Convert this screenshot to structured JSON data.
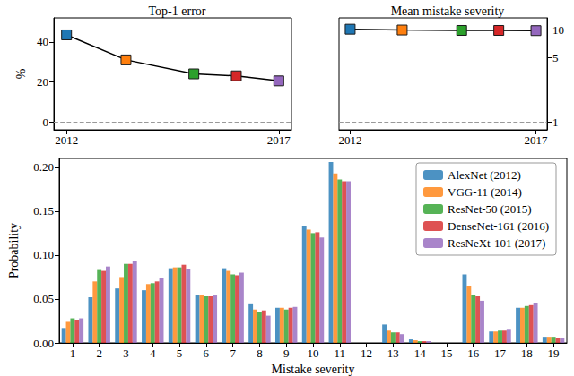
{
  "chart_data": [
    {
      "type": "line",
      "title": "Top-1 error",
      "ylabel": "%",
      "x": [
        2012,
        2013.4,
        2015,
        2016,
        2017
      ],
      "values": [
        43.5,
        31,
        24,
        23,
        20.5
      ],
      "color": "#000000",
      "colors": [
        "#1f77b4",
        "#ff7f0e",
        "#2ca02c",
        "#d62728",
        "#9467bd"
      ],
      "marker": "square",
      "xlim": [
        2011.7,
        2017.3
      ],
      "xticks": [
        2012,
        2017
      ],
      "ylim": [
        -4,
        52
      ],
      "yticks": [
        0,
        20,
        40
      ],
      "hline": 0
    },
    {
      "type": "line",
      "title": "Mean mistake severity",
      "x": [
        2012,
        2013.4,
        2015,
        2016,
        2017
      ],
      "values": [
        10.1,
        9.9,
        9.8,
        9.8,
        9.75
      ],
      "color": "#000000",
      "colors": [
        "#1f77b4",
        "#ff7f0e",
        "#2ca02c",
        "#d62728",
        "#9467bd"
      ],
      "marker": "square",
      "log": "y",
      "xlim": [
        2011.7,
        2017.3
      ],
      "xticks": [
        2012,
        2017
      ],
      "ylim": [
        0.82,
        13.4
      ],
      "yticks": [
        1,
        5,
        10
      ],
      "hline": 1
    },
    {
      "type": "bar",
      "xlabel": "Mistake severity",
      "ylabel": "Probability",
      "categories": [
        "1",
        "2",
        "3",
        "4",
        "5",
        "6",
        "7",
        "8",
        "9",
        "10",
        "11",
        "12",
        "13",
        "14",
        "15",
        "16",
        "17",
        "18",
        "19"
      ],
      "ylim": [
        0,
        0.21
      ],
      "yticks": [
        {
          "value": 0,
          "label": "0.00"
        },
        {
          "value": 0.05,
          "label": "0.05"
        },
        {
          "value": 0.1,
          "label": "0.10"
        },
        {
          "value": 0.15,
          "label": "0.15"
        },
        {
          "value": 0.2,
          "label": "0.20"
        }
      ],
      "legend": "upper right",
      "series": [
        {
          "name": "AlexNet (2012)",
          "color": "#1f77b4",
          "values": [
            0.017,
            0.052,
            0.062,
            0.06,
            0.085,
            0.055,
            0.085,
            0.044,
            0.04,
            0.133,
            0.206,
            0,
            0.021,
            0.004,
            0,
            0.078,
            0.013,
            0.04,
            0.007
          ]
        },
        {
          "name": "VGG-11 (2014)",
          "color": "#ff7f0e",
          "values": [
            0.024,
            0.07,
            0.075,
            0.067,
            0.086,
            0.054,
            0.082,
            0.038,
            0.04,
            0.129,
            0.193,
            0,
            0.014,
            0.003,
            0,
            0.065,
            0.013,
            0.04,
            0.007
          ]
        },
        {
          "name": "ResNet-50 (2015)",
          "color": "#2ca02c",
          "values": [
            0.028,
            0.083,
            0.09,
            0.068,
            0.086,
            0.053,
            0.078,
            0.035,
            0.038,
            0.125,
            0.186,
            0,
            0.012,
            0.002,
            0,
            0.055,
            0.014,
            0.042,
            0.007
          ]
        },
        {
          "name": "DenseNet-161 (2016)",
          "color": "#d62728",
          "values": [
            0.026,
            0.082,
            0.09,
            0.07,
            0.089,
            0.053,
            0.077,
            0.037,
            0.04,
            0.126,
            0.184,
            0,
            0.012,
            0.002,
            0,
            0.053,
            0.014,
            0.043,
            0.006
          ]
        },
        {
          "name": "ResNeXt-101 (2017)",
          "color": "#9467bd",
          "values": [
            0.028,
            0.087,
            0.093,
            0.074,
            0.084,
            0.054,
            0.08,
            0.031,
            0.041,
            0.12,
            0.184,
            0,
            0.01,
            0.002,
            0,
            0.048,
            0.015,
            0.045,
            0.006
          ]
        }
      ]
    }
  ]
}
